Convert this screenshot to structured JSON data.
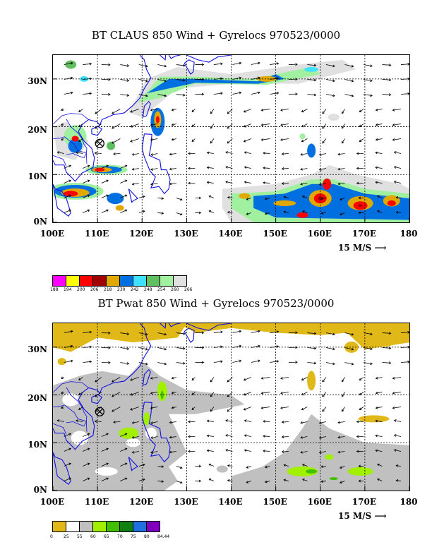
{
  "panel1": {
    "title": "BT CLAUS 850 Wind + Gyrelocs 970523/0000",
    "lat_labels": [
      "30N",
      "20N",
      "10N",
      "0N"
    ],
    "lon_labels": [
      "100E",
      "110E",
      "120E",
      "130E",
      "140E",
      "150E",
      "160E",
      "170E",
      "180"
    ],
    "scale_label": "15 M/S",
    "colorbar": {
      "labels": [
        "188",
        "194",
        "200",
        "206",
        "218",
        "230",
        "242",
        "248",
        "254",
        "260",
        "266"
      ],
      "colors": [
        "#ff00ff",
        "#ffff00",
        "#ff0000",
        "#a00000",
        "#e0a800",
        "#0070e0",
        "#40e0ff",
        "#60c060",
        "#a0f0a0",
        "#e0e0e0"
      ]
    }
  },
  "panel2": {
    "title": "BT Pwat 850 Wind + Gyrelocs 970523/0000",
    "lat_labels": [
      "30N",
      "20N",
      "10N",
      "0N"
    ],
    "lon_labels": [
      "100E",
      "110E",
      "120E",
      "130E",
      "140E",
      "150E",
      "160E",
      "170E",
      "180"
    ],
    "scale_label": "15 M/S",
    "colorbar": {
      "labels": [
        "0",
        "25",
        "55",
        "60",
        "65",
        "70",
        "75",
        "80",
        "84.44"
      ],
      "colors": [
        "#e0b818",
        "#ffffff",
        "#c0c0c0",
        "#a0f000",
        "#40c000",
        "#108010",
        "#2070e0",
        "#8000c0"
      ]
    }
  },
  "map": {
    "lon_min": 100,
    "lon_max": 180,
    "lat_min": 0,
    "lat_max": 35,
    "gyre_marker": {
      "lon": 110.5,
      "lat": 16.5
    }
  }
}
